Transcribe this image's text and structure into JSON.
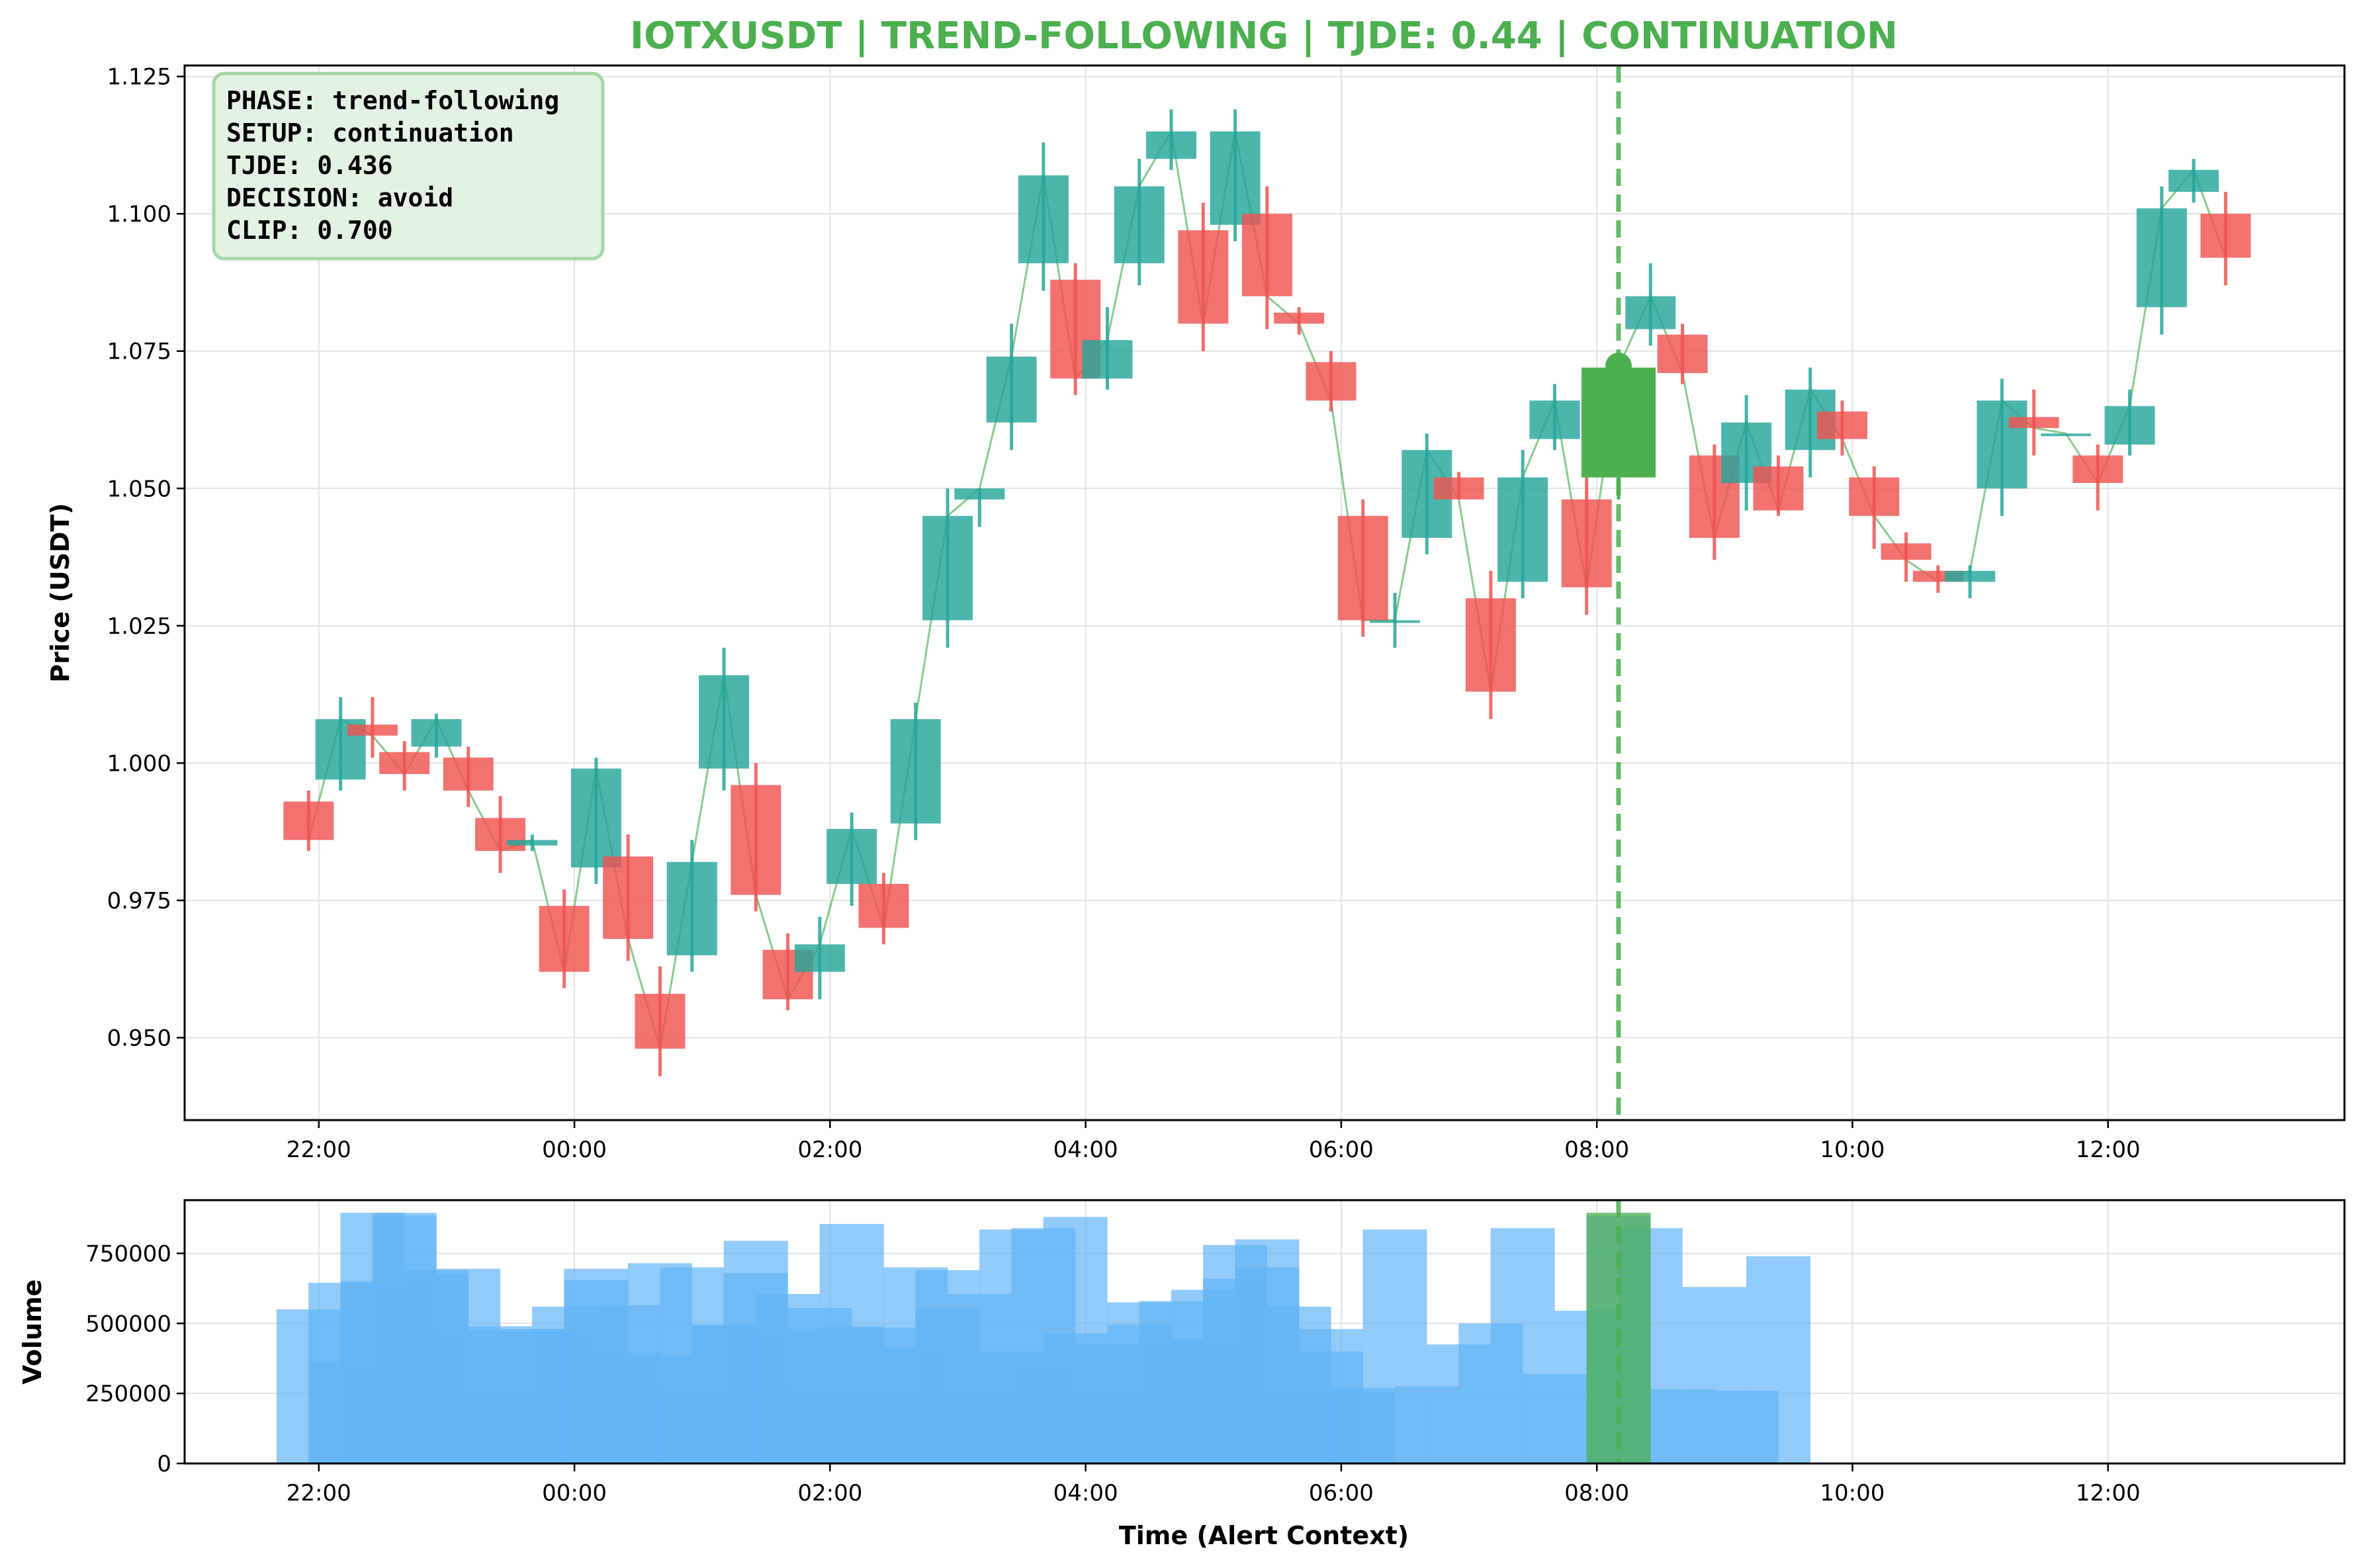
{
  "chart_data": {
    "type": "candlestick",
    "title": "IOTXUSDT | TREND-FOLLOWING | TJDE: 0.44 | CONTINUATION",
    "title_color": "#4caf50",
    "symbol": "IOTXUSDT",
    "colors": {
      "up": "#26a69a",
      "down": "#ef5350",
      "alert": "#4caf50",
      "volume": "#64b5f6",
      "trend_line": "#4caf50"
    },
    "price_panel": {
      "ylabel": "Price (USDT)",
      "ylim": [
        0.935,
        1.127
      ],
      "yticks": [
        "0.950",
        "0.975",
        "1.000",
        "1.025",
        "1.050",
        "1.075",
        "1.100",
        "1.125"
      ],
      "ytick_values": [
        0.95,
        0.975,
        1.0,
        1.025,
        1.05,
        1.075,
        1.1,
        1.125
      ]
    },
    "volume_panel": {
      "ylabel": "Volume",
      "ylim": [
        0,
        940000
      ],
      "yticks": [
        "0",
        "250000",
        "500000",
        "750000"
      ],
      "ytick_values": [
        0,
        250000,
        500000,
        750000
      ]
    },
    "xlabel": "Time (Alert Context)",
    "xlim_hours": [
      -3.05,
      13.85
    ],
    "xticks": [
      "22:00",
      "00:00",
      "02:00",
      "04:00",
      "06:00",
      "08:00",
      "10:00",
      "12:00"
    ],
    "xtick_hours": [
      -2,
      0,
      2,
      4,
      6,
      8,
      10,
      12
    ],
    "alert_time_hours": 8.17,
    "info_box": {
      "lines": [
        "PHASE: trend-following",
        "SETUP: continuation",
        "TJDE: 0.436",
        "DECISION: avoid",
        "CLIP: 0.700"
      ],
      "background": "#e3f2e3",
      "border": "#a5d6a7"
    },
    "candles": [
      {
        "t": -2.08,
        "open": 0.993,
        "high": 0.995,
        "low": 0.984,
        "close": 0.986
      },
      {
        "t": -1.83,
        "open": 0.997,
        "high": 1.012,
        "low": 0.995,
        "close": 1.008
      },
      {
        "t": -1.58,
        "open": 1.007,
        "high": 1.012,
        "low": 1.001,
        "close": 1.005
      },
      {
        "t": -1.33,
        "open": 1.002,
        "high": 1.004,
        "low": 0.995,
        "close": 0.998
      },
      {
        "t": -1.08,
        "open": 1.003,
        "high": 1.009,
        "low": 1.001,
        "close": 1.008
      },
      {
        "t": -0.83,
        "open": 1.001,
        "high": 1.003,
        "low": 0.992,
        "close": 0.995
      },
      {
        "t": -0.58,
        "open": 0.99,
        "high": 0.994,
        "low": 0.98,
        "close": 0.984
      },
      {
        "t": -0.33,
        "open": 0.985,
        "high": 0.987,
        "low": 0.984,
        "close": 0.986
      },
      {
        "t": -0.08,
        "open": 0.974,
        "high": 0.977,
        "low": 0.959,
        "close": 0.962
      },
      {
        "t": 0.17,
        "open": 0.981,
        "high": 1.001,
        "low": 0.978,
        "close": 0.999
      },
      {
        "t": 0.42,
        "open": 0.983,
        "high": 0.987,
        "low": 0.964,
        "close": 0.968
      },
      {
        "t": 0.67,
        "open": 0.958,
        "high": 0.963,
        "low": 0.943,
        "close": 0.948
      },
      {
        "t": 0.92,
        "open": 0.965,
        "high": 0.986,
        "low": 0.962,
        "close": 0.982
      },
      {
        "t": 1.17,
        "open": 0.999,
        "high": 1.021,
        "low": 0.995,
        "close": 1.016
      },
      {
        "t": 1.42,
        "open": 0.996,
        "high": 1.0,
        "low": 0.973,
        "close": 0.976
      },
      {
        "t": 1.67,
        "open": 0.966,
        "high": 0.969,
        "low": 0.955,
        "close": 0.957
      },
      {
        "t": 1.92,
        "open": 0.962,
        "high": 0.972,
        "low": 0.957,
        "close": 0.967
      },
      {
        "t": 2.17,
        "open": 0.978,
        "high": 0.991,
        "low": 0.974,
        "close": 0.988
      },
      {
        "t": 2.42,
        "open": 0.978,
        "high": 0.98,
        "low": 0.967,
        "close": 0.97
      },
      {
        "t": 2.67,
        "open": 0.989,
        "high": 1.011,
        "low": 0.986,
        "close": 1.008
      },
      {
        "t": 2.92,
        "open": 1.026,
        "high": 1.05,
        "low": 1.021,
        "close": 1.045
      },
      {
        "t": 3.17,
        "open": 1.048,
        "high": 1.05,
        "low": 1.043,
        "close": 1.05
      },
      {
        "t": 3.42,
        "open": 1.062,
        "high": 1.08,
        "low": 1.057,
        "close": 1.074
      },
      {
        "t": 3.67,
        "open": 1.091,
        "high": 1.113,
        "low": 1.086,
        "close": 1.107
      },
      {
        "t": 3.92,
        "open": 1.088,
        "high": 1.091,
        "low": 1.067,
        "close": 1.07
      },
      {
        "t": 4.17,
        "open": 1.07,
        "high": 1.083,
        "low": 1.068,
        "close": 1.077
      },
      {
        "t": 4.42,
        "open": 1.091,
        "high": 1.11,
        "low": 1.087,
        "close": 1.105
      },
      {
        "t": 4.67,
        "open": 1.11,
        "high": 1.119,
        "low": 1.108,
        "close": 1.115
      },
      {
        "t": 4.92,
        "open": 1.097,
        "high": 1.102,
        "low": 1.075,
        "close": 1.08
      },
      {
        "t": 5.17,
        "open": 1.098,
        "high": 1.119,
        "low": 1.095,
        "close": 1.115
      },
      {
        "t": 5.42,
        "open": 1.1,
        "high": 1.105,
        "low": 1.079,
        "close": 1.085
      },
      {
        "t": 5.67,
        "open": 1.082,
        "high": 1.083,
        "low": 1.078,
        "close": 1.08
      },
      {
        "t": 5.92,
        "open": 1.073,
        "high": 1.075,
        "low": 1.064,
        "close": 1.066
      },
      {
        "t": 6.17,
        "open": 1.045,
        "high": 1.048,
        "low": 1.023,
        "close": 1.026
      },
      {
        "t": 6.42,
        "open": 1.026,
        "high": 1.031,
        "low": 1.021,
        "close": 1.026
      },
      {
        "t": 6.67,
        "open": 1.041,
        "high": 1.06,
        "low": 1.038,
        "close": 1.057
      },
      {
        "t": 6.92,
        "open": 1.052,
        "high": 1.053,
        "low": 1.048,
        "close": 1.048
      },
      {
        "t": 7.17,
        "open": 1.03,
        "high": 1.035,
        "low": 1.008,
        "close": 1.013
      },
      {
        "t": 7.42,
        "open": 1.033,
        "high": 1.057,
        "low": 1.03,
        "close": 1.052
      },
      {
        "t": 7.67,
        "open": 1.059,
        "high": 1.069,
        "low": 1.057,
        "close": 1.066
      },
      {
        "t": 7.92,
        "open": 1.048,
        "high": 1.057,
        "low": 1.027,
        "close": 1.032
      },
      {
        "t": 8.17,
        "open": 1.052,
        "high": 1.074,
        "low": 1.048,
        "close": 1.072,
        "alert": true
      },
      {
        "t": 8.42,
        "open": 1.079,
        "high": 1.091,
        "low": 1.076,
        "close": 1.085
      },
      {
        "t": 8.67,
        "open": 1.078,
        "high": 1.08,
        "low": 1.069,
        "close": 1.071
      },
      {
        "t": 8.92,
        "open": 1.056,
        "high": 1.058,
        "low": 1.037,
        "close": 1.041
      },
      {
        "t": 9.17,
        "open": 1.051,
        "high": 1.067,
        "low": 1.046,
        "close": 1.062
      },
      {
        "t": 9.42,
        "open": 1.054,
        "high": 1.056,
        "low": 1.045,
        "close": 1.046
      },
      {
        "t": 9.67,
        "open": 1.057,
        "high": 1.072,
        "low": 1.052,
        "close": 1.068
      },
      {
        "t": 9.92,
        "open": 1.064,
        "high": 1.066,
        "low": 1.056,
        "close": 1.059
      },
      {
        "t": 10.17,
        "open": 1.052,
        "high": 1.054,
        "low": 1.039,
        "close": 1.045
      },
      {
        "t": 10.42,
        "open": 1.04,
        "high": 1.042,
        "low": 1.033,
        "close": 1.037
      },
      {
        "t": 10.67,
        "open": 1.035,
        "high": 1.036,
        "low": 1.031,
        "close": 1.033
      },
      {
        "t": 10.92,
        "open": 1.033,
        "high": 1.036,
        "low": 1.03,
        "close": 1.035
      },
      {
        "t": 11.17,
        "open": 1.05,
        "high": 1.07,
        "low": 1.045,
        "close": 1.066
      },
      {
        "t": 11.42,
        "open": 1.063,
        "high": 1.068,
        "low": 1.056,
        "close": 1.061
      },
      {
        "t": 11.67,
        "open": 1.06,
        "high": 1.06,
        "low": 1.06,
        "close": 1.06
      },
      {
        "t": 11.92,
        "open": 1.056,
        "high": 1.058,
        "low": 1.046,
        "close": 1.051
      },
      {
        "t": 12.17,
        "open": 1.058,
        "high": 1.068,
        "low": 1.056,
        "close": 1.065
      },
      {
        "t": 12.42,
        "open": 1.083,
        "high": 1.105,
        "low": 1.078,
        "close": 1.101
      },
      {
        "t": 12.67,
        "open": 1.104,
        "high": 1.11,
        "low": 1.102,
        "close": 1.108
      },
      {
        "t": 12.92,
        "open": 1.1,
        "high": 1.104,
        "low": 1.087,
        "close": 1.092
      }
    ],
    "volume_back": [
      {
        "t": -2.08,
        "v": 550000
      },
      {
        "t": -1.83,
        "v": 645000
      },
      {
        "t": -1.58,
        "v": 895000
      },
      {
        "t": -1.33,
        "v": 885000
      },
      {
        "t": -1.08,
        "v": 690000
      },
      {
        "t": -0.83,
        "v": 695000
      },
      {
        "t": -0.58,
        "v": 255000
      },
      {
        "t": -0.33,
        "v": 470000
      },
      {
        "t": -0.08,
        "v": 480000
      },
      {
        "t": 0.17,
        "v": 655000
      },
      {
        "t": 0.42,
        "v": 565000
      },
      {
        "t": 0.67,
        "v": 715000
      },
      {
        "t": 0.92,
        "v": 700000
      },
      {
        "t": 1.17,
        "v": 495000
      },
      {
        "t": 1.42,
        "v": 795000
      },
      {
        "t": 1.67,
        "v": 480000
      },
      {
        "t": 1.92,
        "v": 275000
      },
      {
        "t": 2.17,
        "v": 490000
      },
      {
        "t": 2.42,
        "v": 485000
      },
      {
        "t": 2.67,
        "v": 700000
      },
      {
        "t": 2.92,
        "v": 690000
      },
      {
        "t": 3.17,
        "v": 605000
      },
      {
        "t": 3.42,
        "v": 835000
      },
      {
        "t": 3.67,
        "v": 840000
      },
      {
        "t": 3.92,
        "v": 880000
      },
      {
        "t": 4.17,
        "v": 255000
      },
      {
        "t": 4.42,
        "v": 575000
      },
      {
        "t": 4.67,
        "v": 580000
      },
      {
        "t": 4.92,
        "v": 620000
      },
      {
        "t": 5.17,
        "v": 660000
      },
      {
        "t": 5.42,
        "v": 800000
      },
      {
        "t": 5.67,
        "v": 265000
      },
      {
        "t": 5.92,
        "v": 400000
      },
      {
        "t": 6.17,
        "v": 255000
      },
      {
        "t": 6.42,
        "v": 835000
      },
      {
        "t": 6.67,
        "v": 275000
      },
      {
        "t": 6.92,
        "v": 425000
      },
      {
        "t": 7.17,
        "v": 500000
      },
      {
        "t": 7.42,
        "v": 840000
      },
      {
        "t": 7.67,
        "v": 320000
      },
      {
        "t": 7.92,
        "v": 545000
      },
      {
        "t": 8.17,
        "v": 885000
      },
      {
        "t": 8.42,
        "v": 840000
      },
      {
        "t": 8.67,
        "v": 265000
      },
      {
        "t": 8.92,
        "v": 630000
      },
      {
        "t": 9.17,
        "v": 260000
      },
      {
        "t": 9.42,
        "v": 740000
      }
    ],
    "volume_front": [
      {
        "t": -1.83,
        "v": 365000
      },
      {
        "t": -1.58,
        "v": 650000
      },
      {
        "t": -1.33,
        "v": 895000
      },
      {
        "t": -1.08,
        "v": 675000
      },
      {
        "t": -0.83,
        "v": 475000
      },
      {
        "t": -0.58,
        "v": 490000
      },
      {
        "t": -0.33,
        "v": 480000
      },
      {
        "t": -0.08,
        "v": 560000
      },
      {
        "t": 0.17,
        "v": 695000
      },
      {
        "t": 0.42,
        "v": 395000
      },
      {
        "t": 0.67,
        "v": 385000
      },
      {
        "t": 0.92,
        "v": 275000
      },
      {
        "t": 1.17,
        "v": 495000
      },
      {
        "t": 1.42,
        "v": 680000
      },
      {
        "t": 1.67,
        "v": 605000
      },
      {
        "t": 1.92,
        "v": 555000
      },
      {
        "t": 2.17,
        "v": 855000
      },
      {
        "t": 2.42,
        "v": 265000
      },
      {
        "t": 2.67,
        "v": 415000
      },
      {
        "t": 2.92,
        "v": 555000
      },
      {
        "t": 3.17,
        "v": 255000
      },
      {
        "t": 3.42,
        "v": 400000
      },
      {
        "t": 3.67,
        "v": 365000
      },
      {
        "t": 3.92,
        "v": 465000
      },
      {
        "t": 4.17,
        "v": 425000
      },
      {
        "t": 4.42,
        "v": 495000
      },
      {
        "t": 4.67,
        "v": 440000
      },
      {
        "t": 4.92,
        "v": 445000
      },
      {
        "t": 5.17,
        "v": 780000
      },
      {
        "t": 5.42,
        "v": 700000
      },
      {
        "t": 5.67,
        "v": 560000
      },
      {
        "t": 5.92,
        "v": 480000
      },
      {
        "t": 6.17,
        "v": 270000
      }
    ],
    "alert_volume": {
      "t": 8.17,
      "v": 895000
    }
  }
}
